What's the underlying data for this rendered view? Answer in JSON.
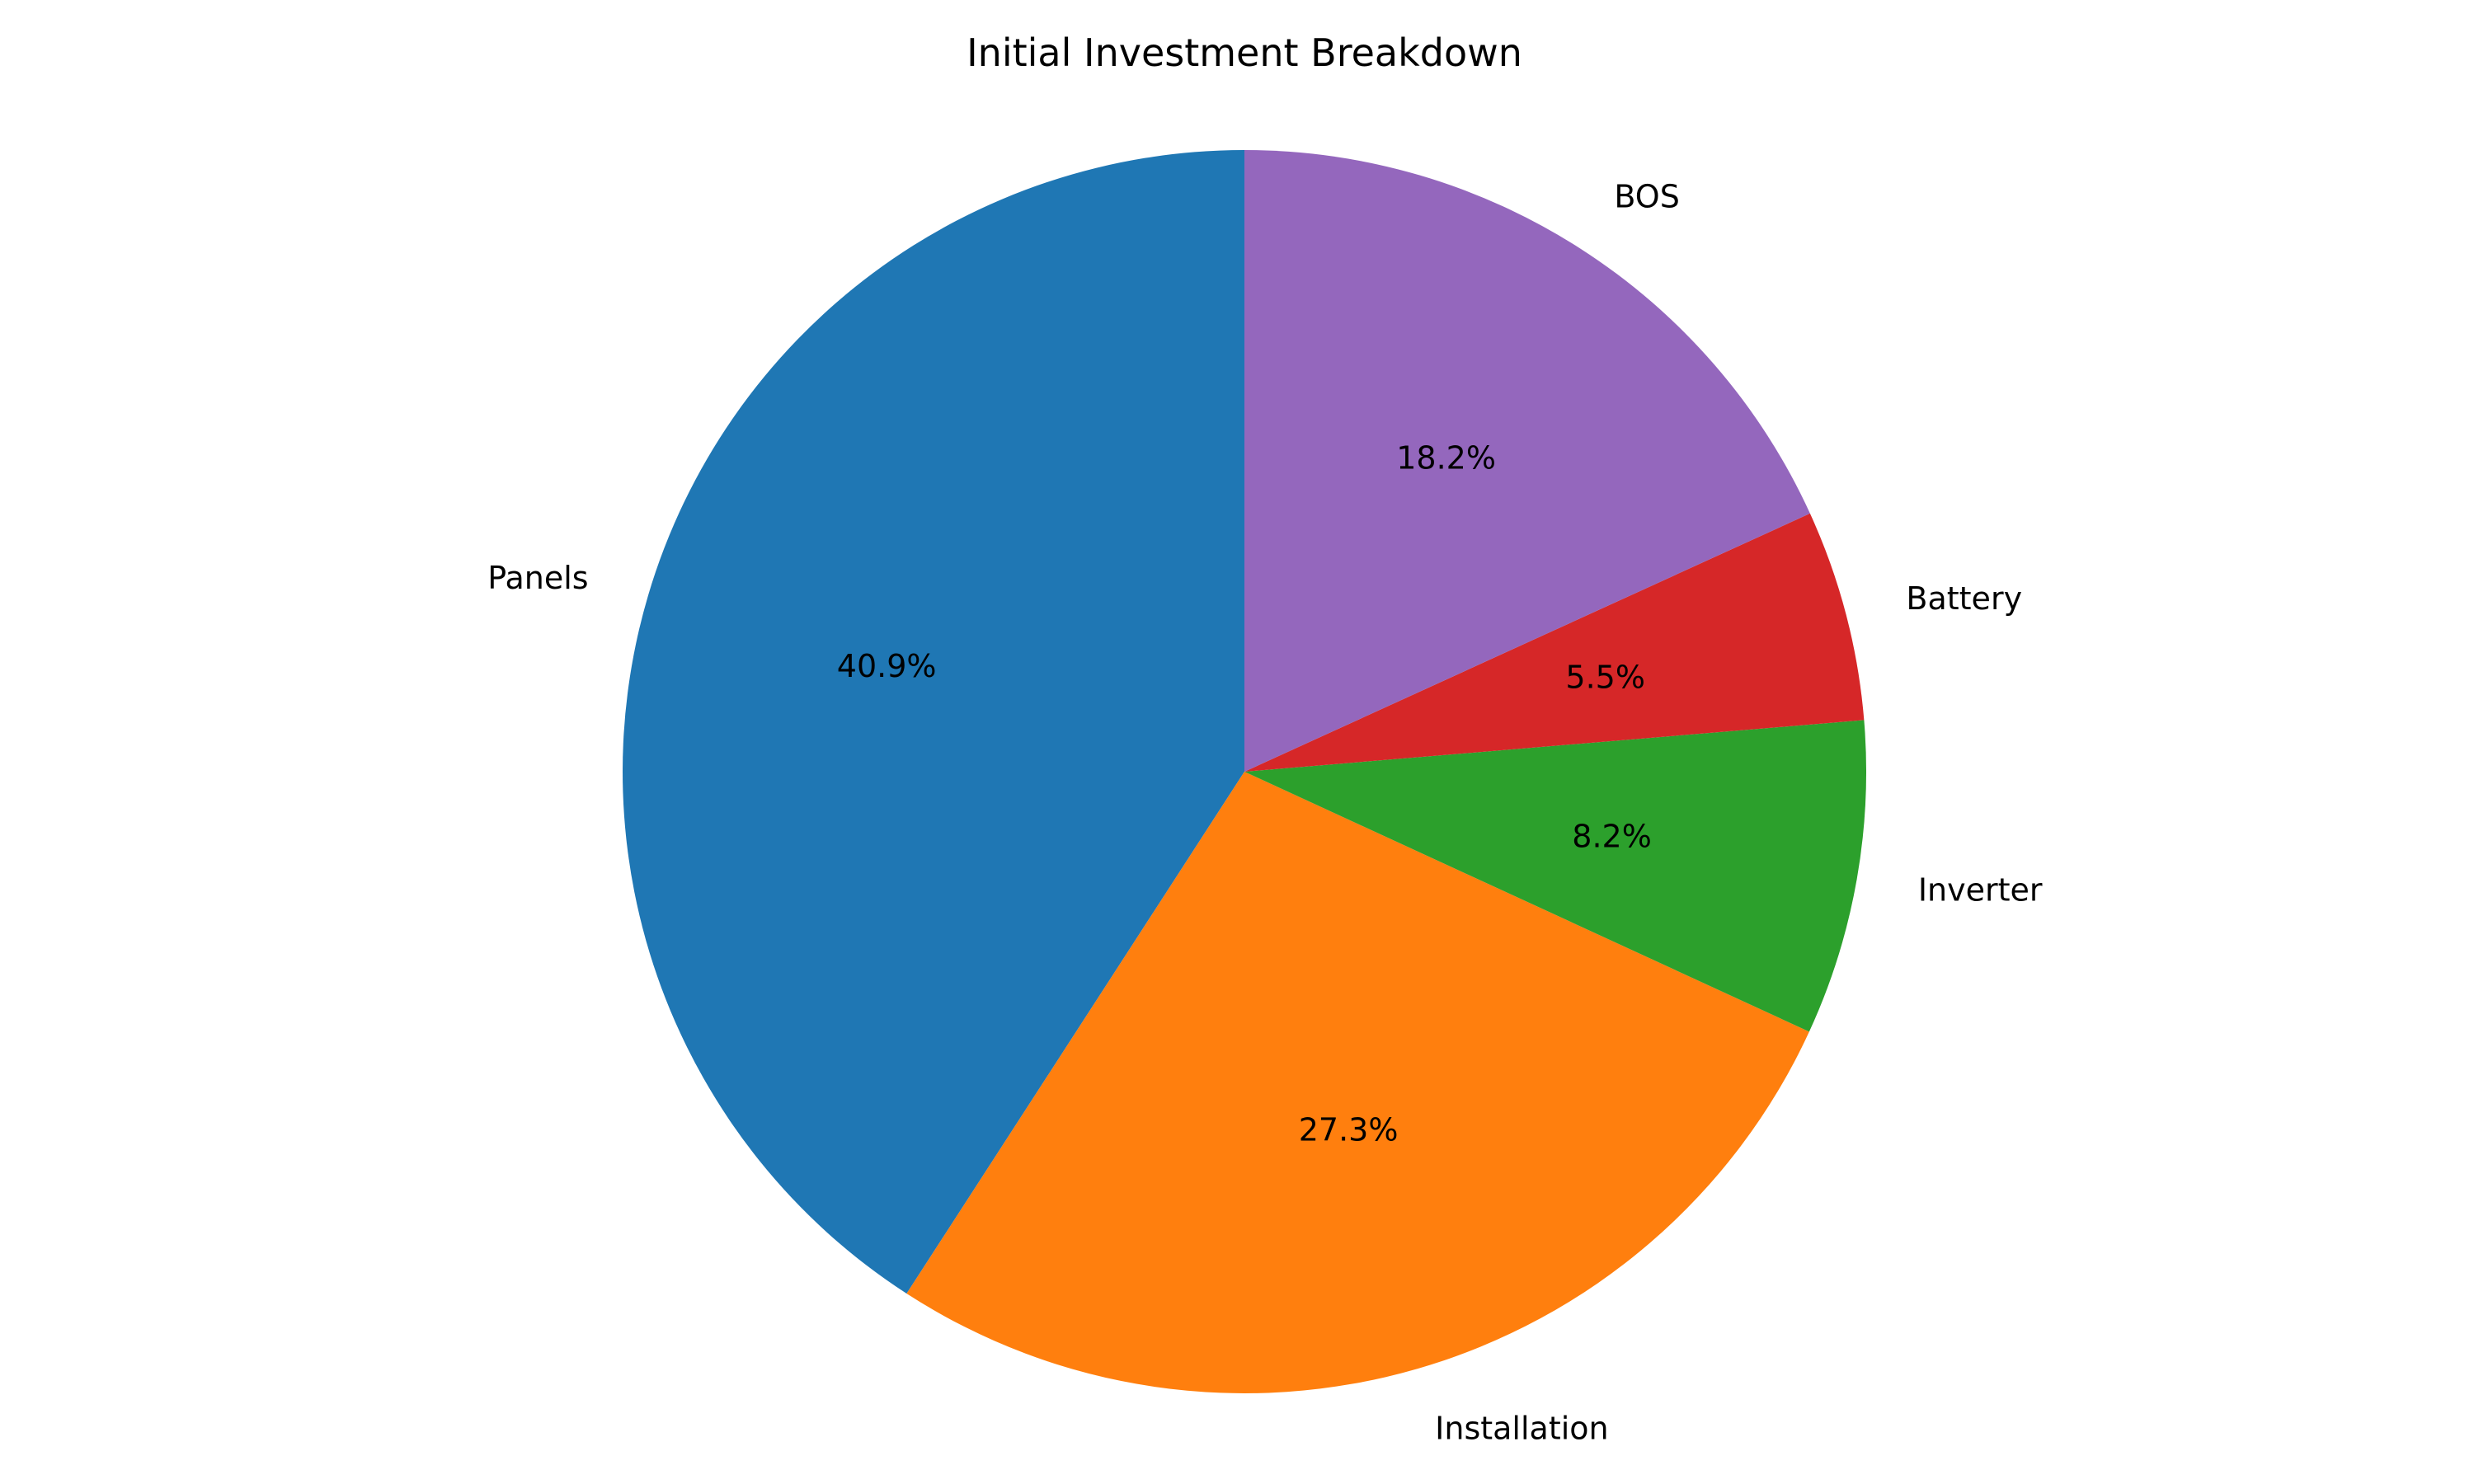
{
  "chart_data": {
    "type": "pie",
    "title": "Initial Investment Breakdown",
    "start_angle_deg": 90,
    "direction": "counterclockwise",
    "slices": [
      {
        "label": "Panels",
        "value": 40.9,
        "pct_label": "40.9%",
        "color": "#1f77b4"
      },
      {
        "label": "Installation",
        "value": 27.3,
        "pct_label": "27.3%",
        "color": "#ff7f0e"
      },
      {
        "label": "Inverter",
        "value": 8.2,
        "pct_label": "8.2%",
        "color": "#2ca02c"
      },
      {
        "label": "Battery",
        "value": 5.5,
        "pct_label": "5.5%",
        "color": "#d62728"
      },
      {
        "label": "BOS",
        "value": 18.2,
        "pct_label": "18.2%",
        "color": "#9467bd"
      }
    ]
  }
}
